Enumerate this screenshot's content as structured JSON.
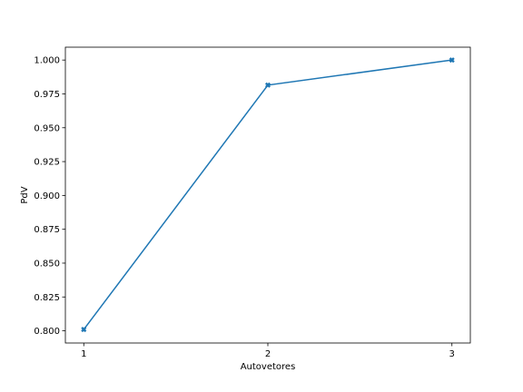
{
  "chart_data": {
    "type": "line",
    "title": "",
    "xlabel": "Autovetores",
    "ylabel": "PdV",
    "x": [
      1,
      2,
      3
    ],
    "series": [
      {
        "values": [
          0.801,
          0.9815,
          1.0
        ],
        "color": "#1f77b4",
        "marker": "x-filled"
      }
    ],
    "xlim": [
      0.9,
      3.1
    ],
    "ylim": [
      0.791,
      1.0095
    ],
    "xticks": [
      1,
      2,
      3
    ],
    "xtick_labels": [
      "1",
      "2",
      "3"
    ],
    "yticks": [
      0.8,
      0.825,
      0.85,
      0.875,
      0.9,
      0.925,
      0.95,
      0.975,
      1.0
    ],
    "ytick_labels": [
      "0.800",
      "0.825",
      "0.850",
      "0.875",
      "0.900",
      "0.925",
      "0.950",
      "0.975",
      "1.000"
    ],
    "grid": false,
    "legend": false
  }
}
